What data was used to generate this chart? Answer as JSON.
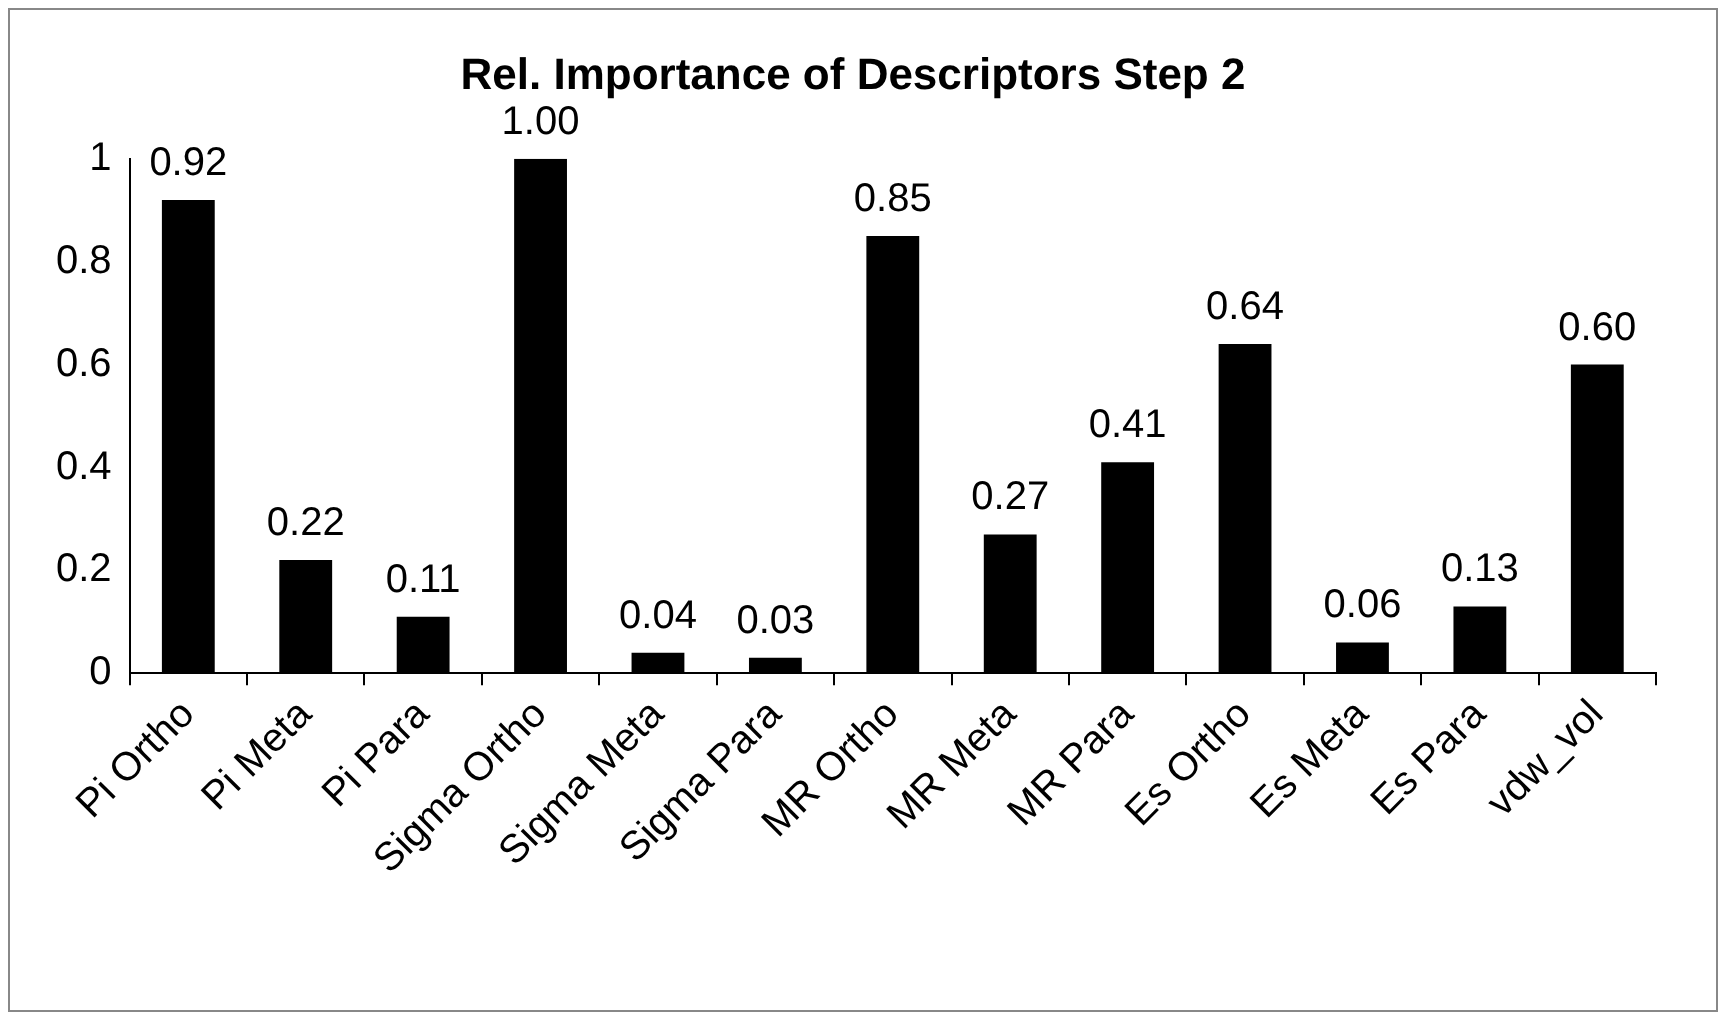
{
  "chart_data": {
    "type": "bar",
    "title": "Rel. Importance of Descriptors Step 2",
    "categories": [
      "Pi Ortho",
      "Pi Meta",
      "Pi Para",
      "Sigma Ortho",
      "Sigma Meta",
      "Sigma Para",
      "MR Ortho",
      "MR Meta",
      "MR Para",
      "Es Ortho",
      "Es Meta",
      "Es Para",
      "vdw_vol"
    ],
    "values": [
      0.92,
      0.22,
      0.11,
      1.0,
      0.04,
      0.03,
      0.85,
      0.27,
      0.41,
      0.64,
      0.06,
      0.13,
      0.6
    ],
    "value_labels": [
      "0.92",
      "0.22",
      "0.11",
      "1.00",
      "0.04",
      "0.03",
      "0.85",
      "0.27",
      "0.41",
      "0.64",
      "0.06",
      "0.13",
      "0.60"
    ],
    "color": "#000000",
    "ylim": [
      0,
      1
    ],
    "yticks": [
      0,
      0.2,
      0.4,
      0.6,
      0.8,
      1
    ],
    "grid": false,
    "legend": false
  }
}
